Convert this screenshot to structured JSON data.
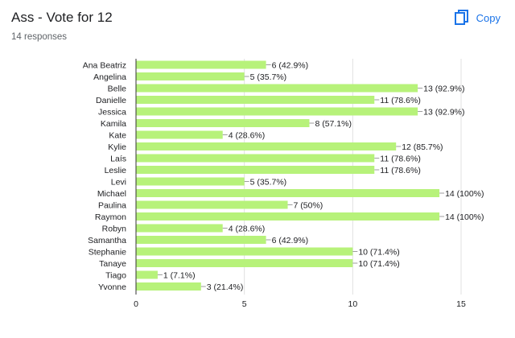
{
  "header": {
    "title": "Ass - Vote for 12",
    "responses": "14 responses",
    "copy_label": "Copy",
    "copy_icon": "copy-icon",
    "accent": "#1a73e8"
  },
  "chart_data": {
    "type": "bar",
    "orientation": "horizontal",
    "bar_color": "#b7f27a",
    "xlim": [
      0,
      15
    ],
    "xticks": [
      0,
      5,
      10,
      15
    ],
    "grid": true,
    "categories": [
      "Ana Beatriz",
      "Angelina",
      "Belle",
      "Danielle",
      "Jessica",
      "Kamila",
      "Kate",
      "Kylie",
      "Laís",
      "Leslie",
      "Levi",
      "Michael",
      "Paulina",
      "Raymon",
      "Robyn",
      "Samantha",
      "Stephanie",
      "Tanaye",
      "Tiago",
      "Yvonne"
    ],
    "values": [
      6,
      5,
      13,
      11,
      13,
      8,
      4,
      12,
      11,
      11,
      5,
      14,
      7,
      14,
      4,
      6,
      10,
      10,
      1,
      3
    ],
    "labels": [
      "6 (42.9%)",
      "5 (35.7%)",
      "13 (92.9%)",
      "11 (78.6%)",
      "13 (92.9%)",
      "8 (57.1%)",
      "4 (28.6%)",
      "12 (85.7%)",
      "11 (78.6%)",
      "11 (78.6%)",
      "5 (35.7%)",
      "14 (100%)",
      "7 (50%)",
      "14 (100%)",
      "4 (28.6%)",
      "6 (42.9%)",
      "10 (71.4%)",
      "10 (71.4%)",
      "1 (7.1%)",
      "3 (21.4%)"
    ]
  }
}
